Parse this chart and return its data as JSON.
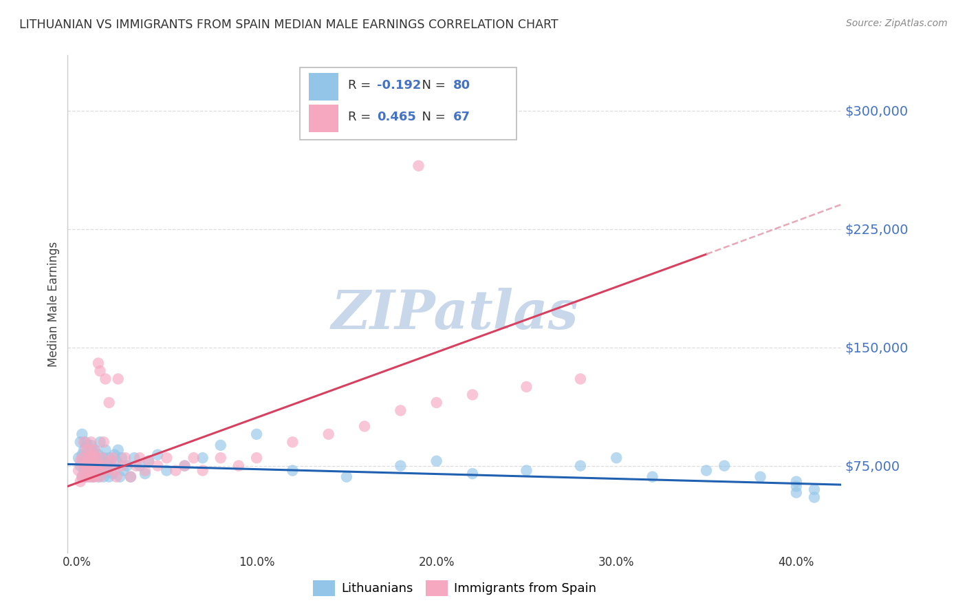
{
  "title": "LITHUANIAN VS IMMIGRANTS FROM SPAIN MEDIAN MALE EARNINGS CORRELATION CHART",
  "source": "Source: ZipAtlas.com",
  "ylabel": "Median Male Earnings",
  "xlabel_ticks": [
    "0.0%",
    "10.0%",
    "20.0%",
    "30.0%",
    "40.0%"
  ],
  "xlabel_vals": [
    0.0,
    0.1,
    0.2,
    0.3,
    0.4
  ],
  "ytick_labels": [
    "$75,000",
    "$150,000",
    "$225,000",
    "$300,000"
  ],
  "ytick_vals": [
    75000,
    150000,
    225000,
    300000
  ],
  "ylim": [
    20000,
    335000
  ],
  "xlim": [
    -0.005,
    0.425
  ],
  "R_lith": -0.192,
  "N_lith": 80,
  "R_spain": 0.465,
  "N_spain": 67,
  "lith_color": "#92C5E8",
  "spain_color": "#F5A8C0",
  "lith_line_color": "#2060B0",
  "spain_line_color": "#D84060",
  "spain_dashed_color": "#E8A8B8",
  "watermark": "ZIPatlas",
  "watermark_color": "#C8D8EA",
  "yticklabel_color": "#4472C4",
  "background_color": "#FFFFFF",
  "grid_color": "#DDDDDD",
  "legend_text_color": "#333333",
  "legend_value_color": "#4472C4",
  "title_color": "#333333",
  "source_color": "#888888",
  "ylabel_color": "#444444",
  "xtick_color": "#333333",
  "lith_x": [
    0.001,
    0.002,
    0.002,
    0.003,
    0.003,
    0.003,
    0.004,
    0.004,
    0.004,
    0.005,
    0.005,
    0.005,
    0.005,
    0.006,
    0.006,
    0.006,
    0.007,
    0.007,
    0.007,
    0.007,
    0.008,
    0.008,
    0.008,
    0.009,
    0.009,
    0.009,
    0.01,
    0.01,
    0.01,
    0.011,
    0.011,
    0.012,
    0.012,
    0.013,
    0.013,
    0.014,
    0.015,
    0.015,
    0.016,
    0.016,
    0.017,
    0.018,
    0.018,
    0.019,
    0.02,
    0.021,
    0.022,
    0.023,
    0.024,
    0.025,
    0.026,
    0.028,
    0.03,
    0.032,
    0.035,
    0.038,
    0.04,
    0.045,
    0.05,
    0.06,
    0.07,
    0.08,
    0.1,
    0.12,
    0.15,
    0.18,
    0.2,
    0.22,
    0.25,
    0.28,
    0.3,
    0.32,
    0.35,
    0.36,
    0.38,
    0.4,
    0.4,
    0.4,
    0.41,
    0.41
  ],
  "lith_y": [
    80000,
    75000,
    90000,
    68000,
    82000,
    95000,
    72000,
    85000,
    78000,
    80000,
    68000,
    90000,
    75000,
    82000,
    70000,
    88000,
    75000,
    68000,
    83000,
    78000,
    80000,
    72000,
    88000,
    75000,
    68000,
    84000,
    78000,
    85000,
    72000,
    80000,
    75000,
    82000,
    68000,
    90000,
    75000,
    78000,
    80000,
    68000,
    85000,
    72000,
    76000,
    68000,
    80000,
    75000,
    70000,
    82000,
    78000,
    85000,
    68000,
    80000,
    72000,
    75000,
    68000,
    80000,
    75000,
    70000,
    78000,
    82000,
    72000,
    75000,
    80000,
    88000,
    95000,
    72000,
    68000,
    75000,
    78000,
    70000,
    72000,
    75000,
    80000,
    68000,
    72000,
    75000,
    68000,
    58000,
    62000,
    65000,
    60000,
    55000
  ],
  "spain_x": [
    0.001,
    0.002,
    0.002,
    0.003,
    0.003,
    0.004,
    0.004,
    0.005,
    0.005,
    0.005,
    0.006,
    0.006,
    0.006,
    0.007,
    0.007,
    0.007,
    0.008,
    0.008,
    0.008,
    0.009,
    0.009,
    0.009,
    0.01,
    0.01,
    0.01,
    0.011,
    0.011,
    0.012,
    0.012,
    0.013,
    0.013,
    0.014,
    0.015,
    0.015,
    0.016,
    0.017,
    0.018,
    0.019,
    0.02,
    0.021,
    0.022,
    0.023,
    0.025,
    0.027,
    0.03,
    0.033,
    0.035,
    0.038,
    0.04,
    0.045,
    0.05,
    0.055,
    0.06,
    0.065,
    0.07,
    0.08,
    0.09,
    0.1,
    0.12,
    0.14,
    0.16,
    0.18,
    0.2,
    0.22,
    0.25,
    0.28,
    0.19
  ],
  "spain_y": [
    72000,
    78000,
    65000,
    80000,
    68000,
    90000,
    75000,
    72000,
    85000,
    68000,
    75000,
    80000,
    68000,
    85000,
    72000,
    78000,
    68000,
    90000,
    75000,
    80000,
    68000,
    82000,
    75000,
    68000,
    85000,
    80000,
    72000,
    140000,
    75000,
    68000,
    135000,
    80000,
    75000,
    90000,
    130000,
    72000,
    115000,
    78000,
    80000,
    72000,
    68000,
    130000,
    75000,
    80000,
    68000,
    75000,
    80000,
    72000,
    78000,
    75000,
    80000,
    72000,
    75000,
    80000,
    72000,
    80000,
    75000,
    80000,
    90000,
    95000,
    100000,
    110000,
    115000,
    120000,
    125000,
    130000,
    265000
  ]
}
